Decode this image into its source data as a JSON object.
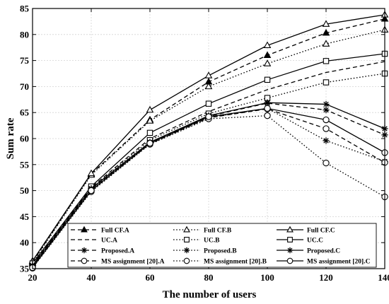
{
  "chart_data": {
    "type": "line",
    "title": "",
    "xlabel": "The number of users",
    "ylabel": "Sum rate",
    "xlim": [
      20,
      140
    ],
    "ylim": [
      35,
      85
    ],
    "xticks": [
      20,
      40,
      60,
      80,
      100,
      120,
      140
    ],
    "yticks": [
      35,
      40,
      45,
      50,
      55,
      60,
      65,
      70,
      75,
      80,
      85
    ],
    "grid": true,
    "legend_position": "bottom",
    "x": [
      20,
      40,
      60,
      80,
      100,
      120,
      140
    ],
    "series": [
      {
        "name": "Full CF.A",
        "style": "dashed",
        "marker": "triangle-filled",
        "values": [
          36.3,
          53.2,
          63.6,
          70.9,
          76.0,
          80.3,
          83.0
        ]
      },
      {
        "name": "Full CF.B",
        "style": "dotted",
        "marker": "triangle-open",
        "values": [
          36.1,
          53.0,
          63.4,
          70.0,
          74.4,
          78.2,
          80.9
        ]
      },
      {
        "name": "Full CF.C",
        "style": "solid",
        "marker": "triangle-open",
        "values": [
          36.5,
          53.3,
          65.5,
          72.1,
          77.9,
          82.0,
          83.8
        ]
      },
      {
        "name": "UC.A",
        "style": "dashed",
        "marker": "none",
        "values": [
          35.8,
          50.6,
          60.0,
          65.2,
          69.4,
          72.7,
          74.8
        ]
      },
      {
        "name": "UC.B",
        "style": "dotted",
        "marker": "square-open",
        "values": [
          35.7,
          50.4,
          59.7,
          64.8,
          67.8,
          70.8,
          72.5
        ]
      },
      {
        "name": "UC.C",
        "style": "solid",
        "marker": "square-open",
        "values": [
          36.0,
          50.8,
          61.1,
          66.7,
          71.3,
          74.9,
          76.3
        ]
      },
      {
        "name": "Proposed.A",
        "style": "dashed",
        "marker": "asterisk",
        "values": [
          35.5,
          50.3,
          59.2,
          64.3,
          66.8,
          65.5,
          60.7
        ]
      },
      {
        "name": "Proposed.B",
        "style": "dotted",
        "marker": "asterisk",
        "values": [
          35.4,
          50.2,
          59.1,
          64.0,
          65.8,
          59.6,
          55.6
        ]
      },
      {
        "name": "Proposed.C",
        "style": "solid",
        "marker": "asterisk",
        "values": [
          35.6,
          50.4,
          59.3,
          64.4,
          66.9,
          66.6,
          61.9
        ]
      },
      {
        "name": "MS assignment [20].A",
        "style": "dashed",
        "marker": "circle-open",
        "values": [
          35.3,
          50.0,
          59.0,
          64.0,
          65.7,
          61.9,
          55.4
        ]
      },
      {
        "name": "MS assignment [20].B",
        "style": "dotted",
        "marker": "circle-open",
        "values": [
          35.1,
          49.8,
          58.9,
          63.8,
          64.4,
          55.3,
          48.8
        ]
      },
      {
        "name": "MS assignment [20].C",
        "style": "solid",
        "marker": "circle-open",
        "values": [
          35.2,
          50.0,
          59.1,
          64.2,
          65.8,
          63.6,
          57.3
        ]
      }
    ]
  }
}
